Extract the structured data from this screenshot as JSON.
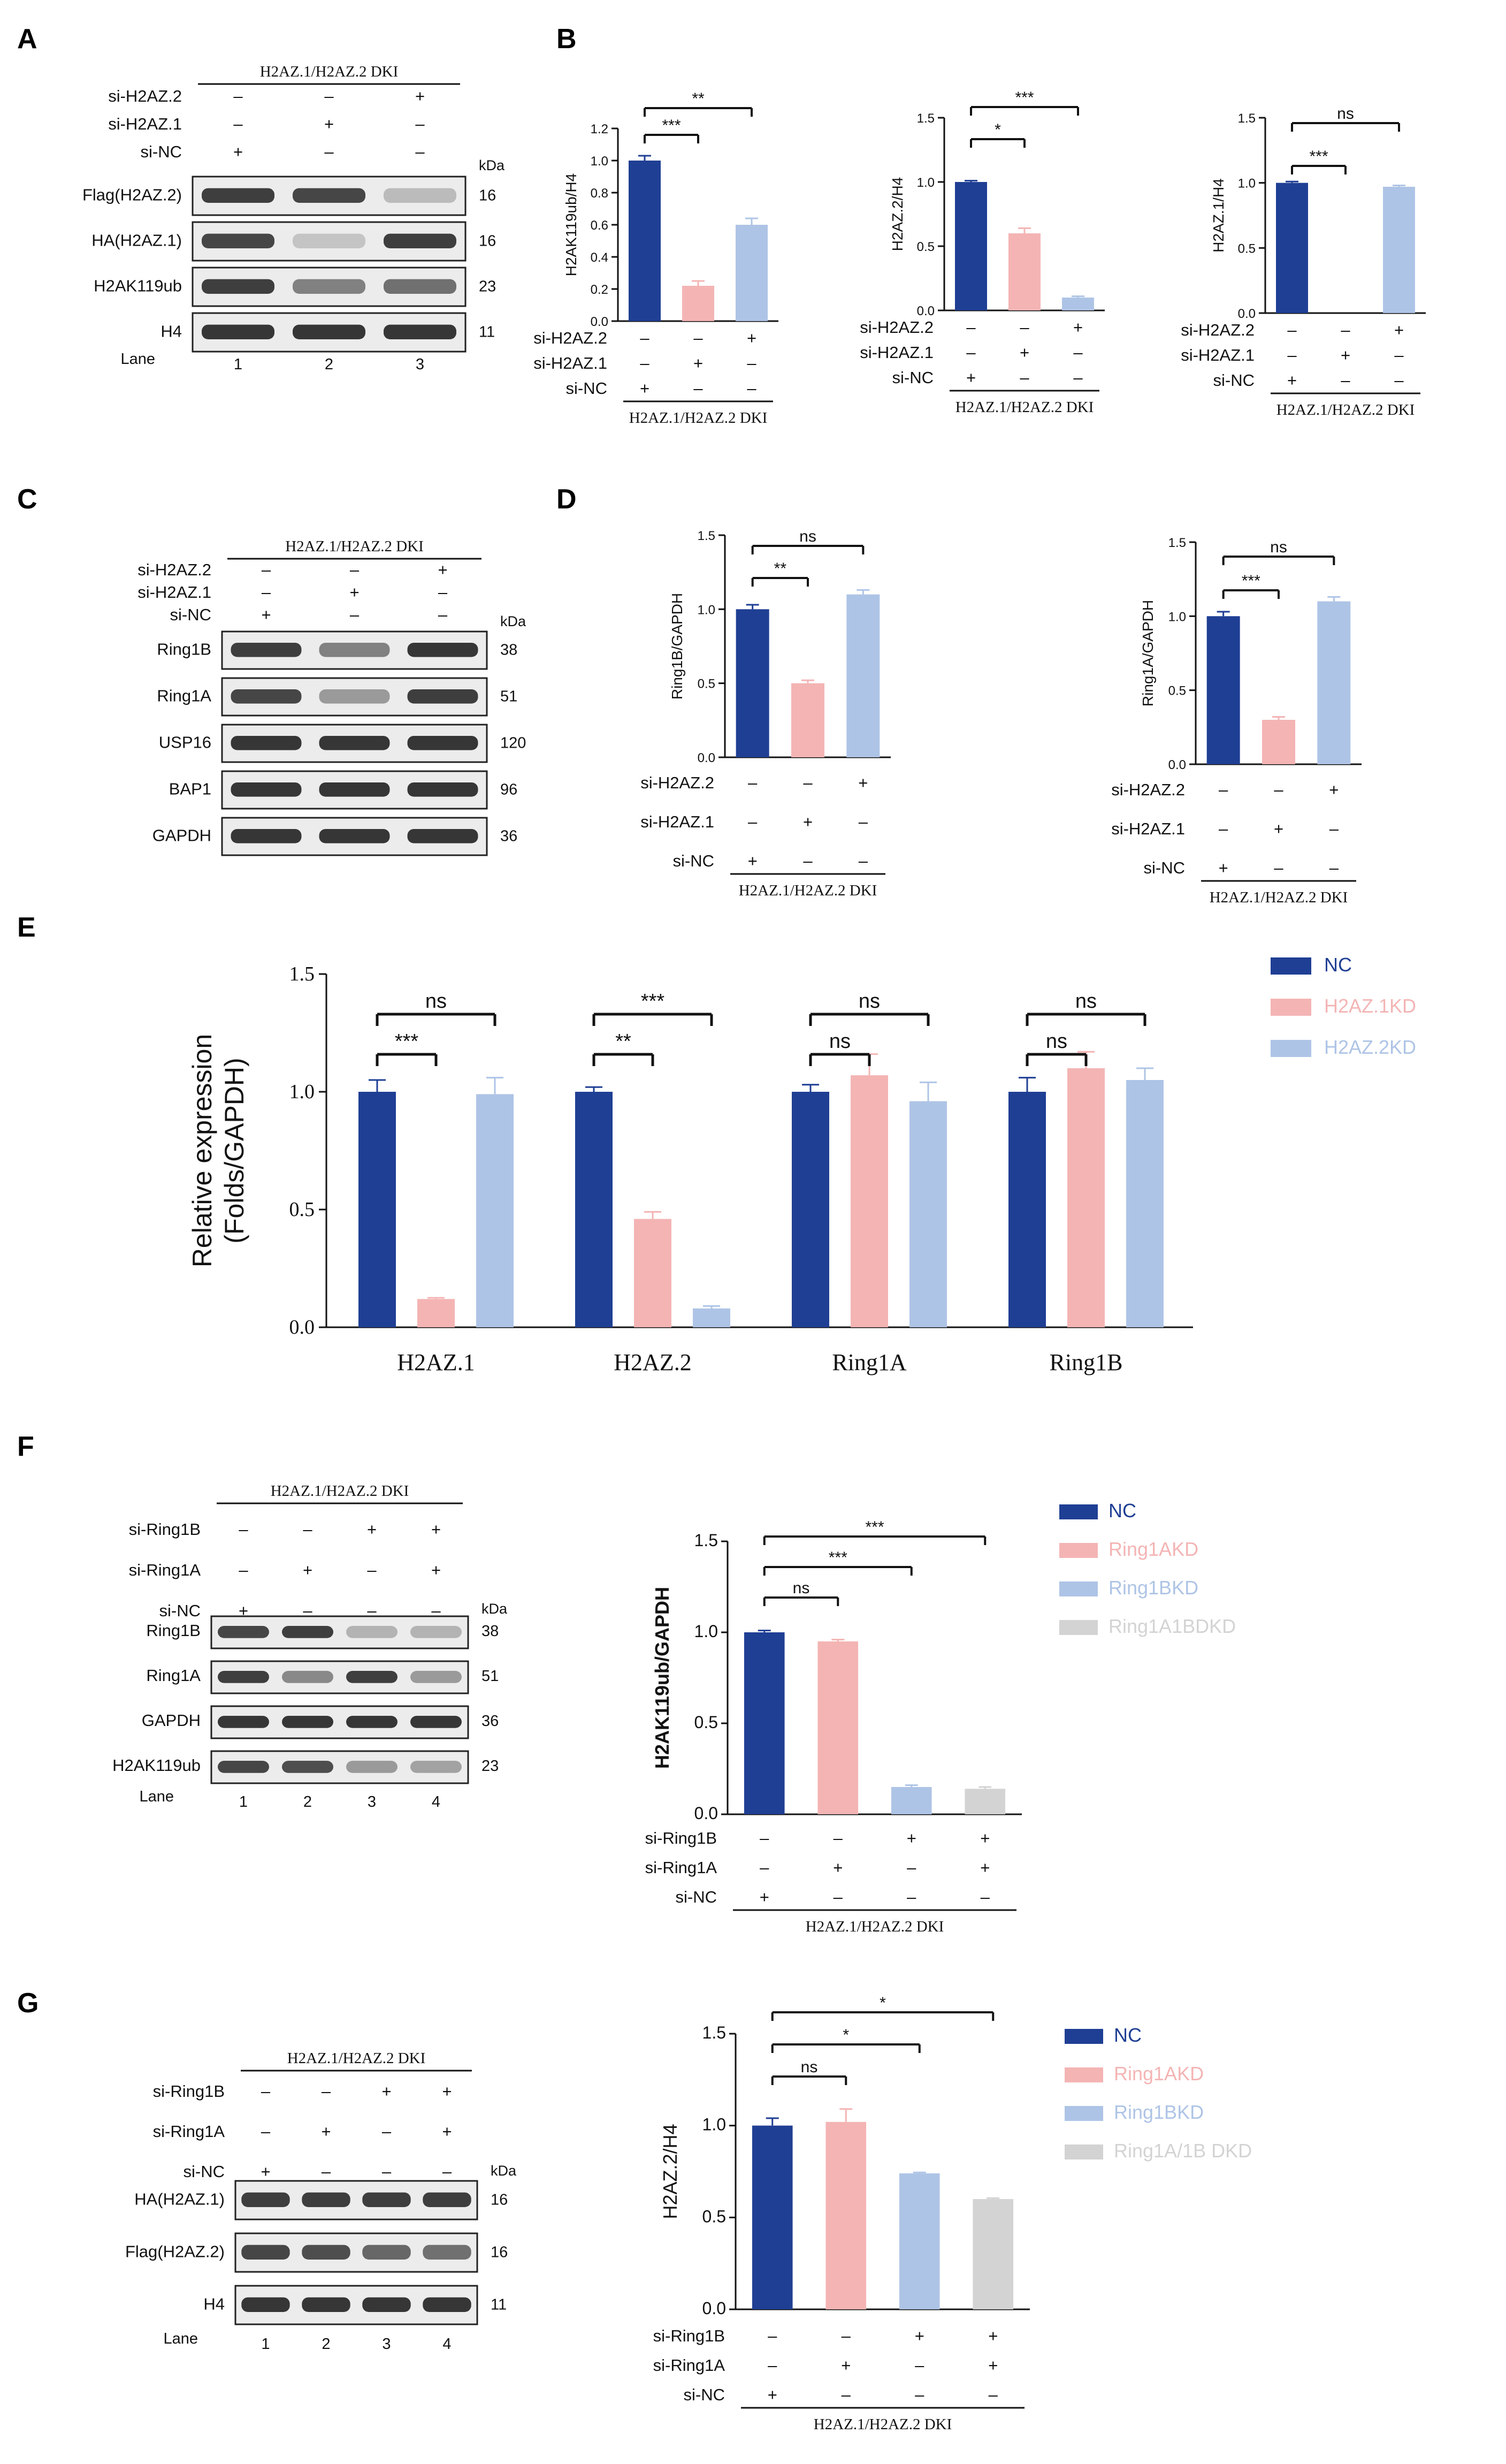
{
  "panels": {
    "A": {
      "label": "A",
      "group": "H2AZ.1/H2AZ.2 DKI",
      "conditions": [
        {
          "name": "si-H2AZ.2",
          "signs": [
            "–",
            "–",
            "+"
          ]
        },
        {
          "name": "si-H2AZ.1",
          "signs": [
            "–",
            "+",
            "–"
          ]
        },
        {
          "name": "si-NC",
          "signs": [
            "+",
            "–",
            "–"
          ]
        }
      ],
      "kda_label": "kDa",
      "blots": [
        {
          "name": "Flag(H2AZ.2)",
          "kda": "16",
          "bands": [
            0.85,
            0.8,
            0.1
          ]
        },
        {
          "name": "HA(H2AZ.1)",
          "kda": "16",
          "bands": [
            0.8,
            0.05,
            0.85
          ]
        },
        {
          "name": "H2AK119ub",
          "kda": "23",
          "bands": [
            0.85,
            0.45,
            0.55
          ]
        },
        {
          "name": "H4",
          "kda": "11",
          "bands": [
            0.9,
            0.9,
            0.9
          ]
        }
      ],
      "lane_label": "Lane",
      "lanes": [
        "1",
        "2",
        "3"
      ]
    },
    "C": {
      "label": "C",
      "group": "H2AZ.1/H2AZ.2 DKI",
      "conditions": [
        {
          "name": "si-H2AZ.2",
          "signs": [
            "–",
            "–",
            "+"
          ]
        },
        {
          "name": "si-H2AZ.1",
          "signs": [
            "–",
            "+",
            "–"
          ]
        },
        {
          "name": "si-NC",
          "signs": [
            "+",
            "–",
            "–"
          ]
        }
      ],
      "kda_label": "kDa",
      "blots": [
        {
          "name": "Ring1B",
          "kda": "38",
          "bands": [
            0.85,
            0.45,
            0.9
          ]
        },
        {
          "name": "Ring1A",
          "kda": "51",
          "bands": [
            0.8,
            0.3,
            0.85
          ]
        },
        {
          "name": "USP16",
          "kda": "120",
          "bands": [
            0.9,
            0.9,
            0.9
          ]
        },
        {
          "name": "BAP1",
          "kda": "96",
          "bands": [
            0.9,
            0.9,
            0.9
          ]
        },
        {
          "name": "GAPDH",
          "kda": "36",
          "bands": [
            0.9,
            0.9,
            0.9
          ]
        }
      ]
    },
    "F": {
      "label": "F",
      "group": "H2AZ.1/H2AZ.2 DKI",
      "conditions": [
        {
          "name": "si-Ring1B",
          "signs": [
            "–",
            "–",
            "+",
            "+"
          ]
        },
        {
          "name": "si-Ring1A",
          "signs": [
            "–",
            "+",
            "–",
            "+"
          ]
        },
        {
          "name": "si-NC",
          "signs": [
            "+",
            "–",
            "–",
            "–"
          ]
        }
      ],
      "kda_label": "kDa",
      "blots": [
        {
          "name": "Ring1B",
          "kda": "38",
          "bands": [
            0.8,
            0.85,
            0.15,
            0.15
          ]
        },
        {
          "name": "Ring1A",
          "kda": "51",
          "bands": [
            0.85,
            0.4,
            0.85,
            0.3
          ]
        },
        {
          "name": "GAPDH",
          "kda": "36",
          "bands": [
            0.9,
            0.9,
            0.9,
            0.9
          ]
        },
        {
          "name": "H2AK119ub",
          "kda": "23",
          "bands": [
            0.8,
            0.75,
            0.3,
            0.25
          ]
        }
      ],
      "lane_label": "Lane",
      "lanes": [
        "1",
        "2",
        "3",
        "4"
      ]
    },
    "G": {
      "label": "G",
      "group": "H2AZ.1/H2AZ.2 DKI",
      "conditions": [
        {
          "name": "si-Ring1B",
          "signs": [
            "–",
            "–",
            "+",
            "+"
          ]
        },
        {
          "name": "si-Ring1A",
          "signs": [
            "–",
            "+",
            "–",
            "+"
          ]
        },
        {
          "name": "si-NC",
          "signs": [
            "+",
            "–",
            "–",
            "–"
          ]
        }
      ],
      "kda_label": "kDa",
      "blots": [
        {
          "name": "HA(H2AZ.1)",
          "kda": "16",
          "bands": [
            0.85,
            0.85,
            0.85,
            0.85
          ]
        },
        {
          "name": "Flag(H2AZ.2)",
          "kda": "16",
          "bands": [
            0.8,
            0.75,
            0.6,
            0.55
          ]
        },
        {
          "name": "H4",
          "kda": "11",
          "bands": [
            0.9,
            0.9,
            0.9,
            0.9
          ]
        }
      ],
      "lane_label": "Lane",
      "lanes": [
        "1",
        "2",
        "3",
        "4"
      ]
    },
    "B": {
      "label": "B"
    },
    "D": {
      "label": "D"
    },
    "E": {
      "label": "E"
    }
  },
  "chart_data": [
    {
      "id": "B1",
      "panel": "B",
      "type": "bar",
      "ylabel": "H2AK119ub/H4",
      "ylim": [
        0,
        1.2
      ],
      "yticks": [
        "0.0",
        "0.2",
        "0.4",
        "0.6",
        "0.8",
        "1.0",
        "1.2"
      ],
      "values": [
        1.0,
        0.22,
        0.6
      ],
      "errors": [
        0.03,
        0.03,
        0.04
      ],
      "colors": [
        "#1f3f94",
        "#f4b4b4",
        "#aec4e6"
      ],
      "conditions": [
        {
          "name": "si-H2AZ.2",
          "signs": [
            "–",
            "–",
            "+"
          ]
        },
        {
          "name": "si-H2AZ.1",
          "signs": [
            "–",
            "+",
            "–"
          ]
        },
        {
          "name": "si-NC",
          "signs": [
            "+",
            "–",
            "–"
          ]
        }
      ],
      "group": "H2AZ.1/H2AZ.2 DKI",
      "significance": [
        {
          "from": 0,
          "to": 1,
          "label": "***"
        },
        {
          "from": 0,
          "to": 2,
          "label": "**"
        }
      ]
    },
    {
      "id": "B2",
      "panel": "B",
      "type": "bar",
      "ylabel": "H2AZ.2/H4",
      "ylim": [
        0,
        1.5
      ],
      "yticks": [
        "0.0",
        "0.5",
        "1.0",
        "1.5"
      ],
      "values": [
        1.0,
        0.6,
        0.1
      ],
      "errors": [
        0.01,
        0.04,
        0.01
      ],
      "colors": [
        "#1f3f94",
        "#f4b4b4",
        "#aec4e6"
      ],
      "conditions": [
        {
          "name": "si-H2AZ.2",
          "signs": [
            "–",
            "–",
            "+"
          ]
        },
        {
          "name": "si-H2AZ.1",
          "signs": [
            "–",
            "+",
            "–"
          ]
        },
        {
          "name": "si-NC",
          "signs": [
            "+",
            "–",
            "–"
          ]
        }
      ],
      "group": "H2AZ.1/H2AZ.2 DKI",
      "significance": [
        {
          "from": 0,
          "to": 1,
          "label": "*"
        },
        {
          "from": 0,
          "to": 2,
          "label": "***"
        }
      ]
    },
    {
      "id": "B3",
      "panel": "B",
      "type": "bar",
      "ylabel": "H2AZ.1/H4",
      "ylim": [
        0,
        1.5
      ],
      "yticks": [
        "0.0",
        "0.5",
        "1.0",
        "1.5"
      ],
      "values": [
        1.0,
        0.0,
        0.97
      ],
      "errors": [
        0.01,
        0.0,
        0.01
      ],
      "colors": [
        "#1f3f94",
        "#f4b4b4",
        "#aec4e6"
      ],
      "conditions": [
        {
          "name": "si-H2AZ.2",
          "signs": [
            "–",
            "–",
            "+"
          ]
        },
        {
          "name": "si-H2AZ.1",
          "signs": [
            "–",
            "+",
            "–"
          ]
        },
        {
          "name": "si-NC",
          "signs": [
            "+",
            "–",
            "–"
          ]
        }
      ],
      "group": "H2AZ.1/H2AZ.2 DKI",
      "significance": [
        {
          "from": 0,
          "to": 1,
          "label": "***"
        },
        {
          "from": 0,
          "to": 2,
          "label": "ns"
        }
      ]
    },
    {
      "id": "D1",
      "panel": "D",
      "type": "bar",
      "ylabel": "Ring1B/GAPDH",
      "ylim": [
        0,
        1.5
      ],
      "yticks": [
        "0.0",
        "0.5",
        "1.0",
        "1.5"
      ],
      "values": [
        1.0,
        0.5,
        1.1
      ],
      "errors": [
        0.03,
        0.02,
        0.03
      ],
      "colors": [
        "#1f3f94",
        "#f4b4b4",
        "#aec4e6"
      ],
      "conditions": [
        {
          "name": "si-H2AZ.2",
          "signs": [
            "–",
            "–",
            "+"
          ]
        },
        {
          "name": "si-H2AZ.1",
          "signs": [
            "–",
            "+",
            "–"
          ]
        },
        {
          "name": "si-NC",
          "signs": [
            "+",
            "–",
            "–"
          ]
        }
      ],
      "group": "H2AZ.1/H2AZ.2 DKI",
      "significance": [
        {
          "from": 0,
          "to": 1,
          "label": "**"
        },
        {
          "from": 0,
          "to": 2,
          "label": "ns"
        }
      ]
    },
    {
      "id": "D2",
      "panel": "D",
      "type": "bar",
      "ylabel": "Ring1A/GAPDH",
      "ylim": [
        0,
        1.5
      ],
      "yticks": [
        "0.0",
        "0.5",
        "1.0",
        "1.5"
      ],
      "values": [
        1.0,
        0.3,
        1.1
      ],
      "errors": [
        0.03,
        0.02,
        0.03
      ],
      "colors": [
        "#1f3f94",
        "#f4b4b4",
        "#aec4e6"
      ],
      "conditions": [
        {
          "name": "si-H2AZ.2",
          "signs": [
            "–",
            "–",
            "+"
          ]
        },
        {
          "name": "si-H2AZ.1",
          "signs": [
            "–",
            "+",
            "–"
          ]
        },
        {
          "name": "si-NC",
          "signs": [
            "+",
            "–",
            "–"
          ]
        }
      ],
      "group": "H2AZ.1/H2AZ.2 DKI",
      "significance": [
        {
          "from": 0,
          "to": 1,
          "label": "***"
        },
        {
          "from": 0,
          "to": 2,
          "label": "ns"
        }
      ]
    },
    {
      "id": "E",
      "panel": "E",
      "type": "bar",
      "ylabel": "Relative expression\n(Folds/GAPDH)",
      "ylim": [
        0,
        1.5
      ],
      "yticks": [
        "0.0",
        "0.5",
        "1.0",
        "1.5"
      ],
      "categories": [
        "H2AZ.1",
        "H2AZ.2",
        "Ring1A",
        "Ring1B"
      ],
      "series": [
        {
          "name": "NC",
          "color": "#1f3f94",
          "values": [
            1.0,
            1.0,
            1.0,
            1.0
          ],
          "errors": [
            0.05,
            0.02,
            0.03,
            0.06
          ]
        },
        {
          "name": "H2AZ.1KD",
          "color": "#f4b4b4",
          "values": [
            0.12,
            0.46,
            1.07,
            1.1
          ],
          "errors": [
            0.005,
            0.03,
            0.09,
            0.07
          ]
        },
        {
          "name": "H2AZ.2KD",
          "color": "#aec4e6",
          "values": [
            0.99,
            0.08,
            0.96,
            1.05
          ],
          "errors": [
            0.07,
            0.01,
            0.08,
            0.05
          ]
        }
      ],
      "significance": [
        {
          "cat": 0,
          "from": 0,
          "to": 1,
          "label": "***"
        },
        {
          "cat": 0,
          "from": 0,
          "to": 2,
          "label": "ns"
        },
        {
          "cat": 1,
          "from": 0,
          "to": 1,
          "label": "**"
        },
        {
          "cat": 1,
          "from": 0,
          "to": 2,
          "label": "***"
        },
        {
          "cat": 2,
          "from": 0,
          "to": 1,
          "label": "ns"
        },
        {
          "cat": 2,
          "from": 0,
          "to": 2,
          "label": "ns"
        },
        {
          "cat": 3,
          "from": 0,
          "to": 1,
          "label": "ns"
        },
        {
          "cat": 3,
          "from": 0,
          "to": 2,
          "label": "ns"
        }
      ]
    },
    {
      "id": "F",
      "panel": "F",
      "type": "bar",
      "ylabel": "H2AK119ub/GAPDH",
      "ylim": [
        0,
        1.5
      ],
      "yticks": [
        "0.0",
        "0.5",
        "1.0",
        "1.5"
      ],
      "values": [
        1.0,
        0.95,
        0.15,
        0.14
      ],
      "errors": [
        0.01,
        0.01,
        0.01,
        0.01
      ],
      "colors": [
        "#1f3f94",
        "#f4b4b4",
        "#aec4e6",
        "#d3d3d3"
      ],
      "legend": [
        "NC",
        "Ring1AKD",
        "Ring1BKD",
        "Ring1A1BDKD"
      ],
      "conditions": [
        {
          "name": "si-Ring1B",
          "signs": [
            "–",
            "–",
            "+",
            "+"
          ]
        },
        {
          "name": "si-Ring1A",
          "signs": [
            "–",
            "+",
            "–",
            "+"
          ]
        },
        {
          "name": "si-NC",
          "signs": [
            "+",
            "–",
            "–",
            "–"
          ]
        }
      ],
      "group": "H2AZ.1/H2AZ.2 DKI",
      "significance": [
        {
          "from": 0,
          "to": 1,
          "label": "ns"
        },
        {
          "from": 0,
          "to": 2,
          "label": "***"
        },
        {
          "from": 0,
          "to": 3,
          "label": "***"
        }
      ]
    },
    {
      "id": "G",
      "panel": "G",
      "type": "bar",
      "ylabel": "H2AZ.2/H4",
      "ylim": [
        0,
        1.5
      ],
      "yticks": [
        "0.0",
        "0.5",
        "1.0",
        "1.5"
      ],
      "values": [
        1.0,
        1.02,
        0.74,
        0.6
      ],
      "errors": [
        0.04,
        0.07,
        0.005,
        0.005
      ],
      "colors": [
        "#1f3f94",
        "#f4b4b4",
        "#aec4e6",
        "#d3d3d3"
      ],
      "legend": [
        "NC",
        "Ring1AKD",
        "Ring1BKD",
        "Ring1A/1B DKD"
      ],
      "conditions": [
        {
          "name": "si-Ring1B",
          "signs": [
            "–",
            "–",
            "+",
            "+"
          ]
        },
        {
          "name": "si-Ring1A",
          "signs": [
            "–",
            "+",
            "–",
            "+"
          ]
        },
        {
          "name": "si-NC",
          "signs": [
            "+",
            "–",
            "–",
            "–"
          ]
        }
      ],
      "group": "H2AZ.1/H2AZ.2 DKI",
      "significance": [
        {
          "from": 0,
          "to": 1,
          "label": "ns"
        },
        {
          "from": 0,
          "to": 2,
          "label": "*"
        },
        {
          "from": 0,
          "to": 3,
          "label": "*"
        }
      ]
    }
  ]
}
